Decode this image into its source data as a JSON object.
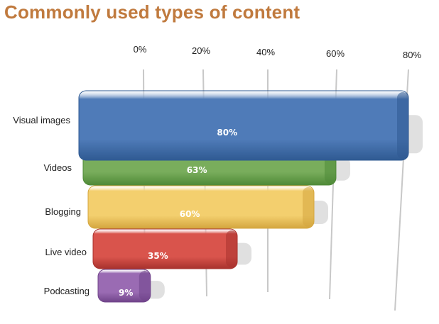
{
  "chart_data": {
    "type": "bar",
    "orientation": "horizontal",
    "title": "Commonly used types of content",
    "categories": [
      "Visual images",
      "Videos",
      "Blogging",
      "Live video",
      "Podcasting"
    ],
    "values": [
      80,
      63,
      60,
      35,
      9
    ],
    "value_labels": [
      "80%",
      "63%",
      "60%",
      "35%",
      "9%"
    ],
    "x_ticks": [
      "0%",
      "20%",
      "40%",
      "60%",
      "80%"
    ],
    "xlim": [
      0,
      80
    ],
    "grid": true,
    "legend": "none",
    "colors": [
      "#4f7bb8",
      "#79ad5c",
      "#f3cf6e",
      "#d9544c",
      "#9a6bb3"
    ],
    "dark_colors": [
      "#2f5a92",
      "#4f8a38",
      "#d4a63f",
      "#a8322d",
      "#70448a"
    ]
  }
}
